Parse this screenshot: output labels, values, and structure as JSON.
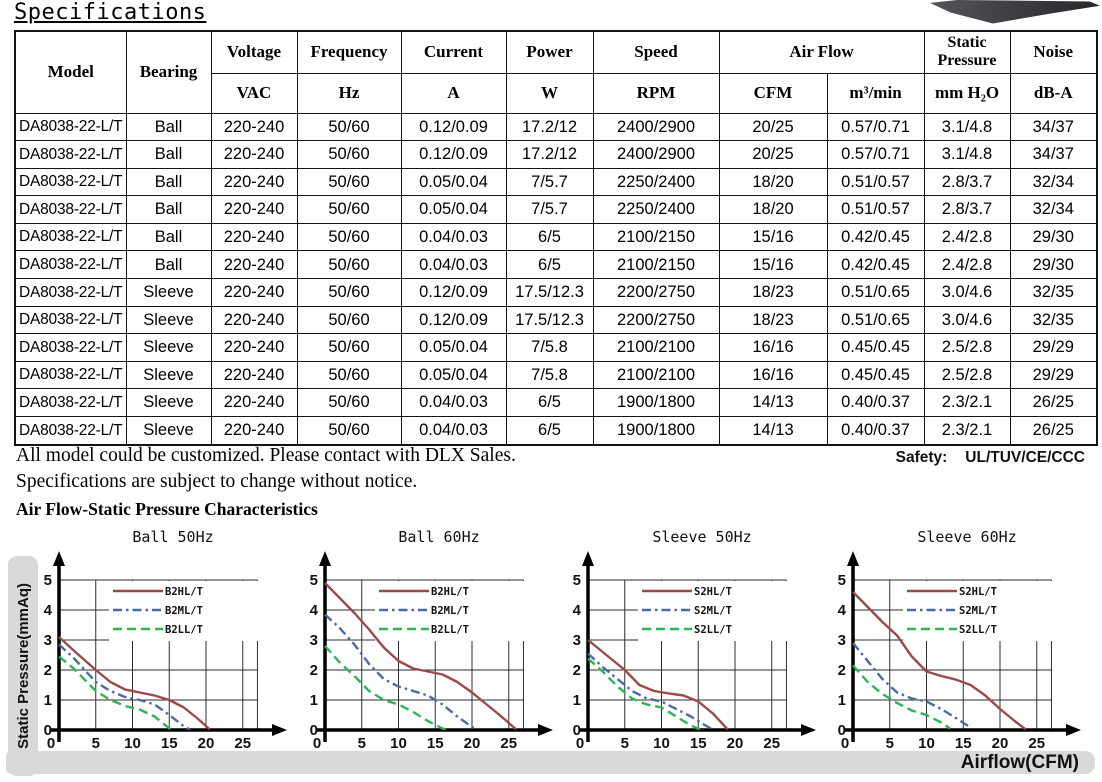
{
  "page": {
    "title": "Specifications"
  },
  "notes": [
    "All model could be customized. Please contact with DLX Sales.",
    "Specifications are subject to change without notice."
  ],
  "safety": {
    "label": "Safety:",
    "value": "UL/TUV/CE/CCC"
  },
  "charts_section": {
    "title": "Air Flow-Static Pressure Characteristics",
    "y_axis_label": "Static Pressure(mmAq)",
    "x_axis_label": "Airflow(CFM)"
  },
  "table": {
    "col_keys": [
      "model",
      "bearing",
      "voltage",
      "frequency",
      "current",
      "power",
      "speed",
      "cfm",
      "m3min",
      "mmh2o",
      "noise"
    ],
    "headers": {
      "model": "Model",
      "bearing": "Bearing",
      "voltage": "Voltage",
      "frequency": "Frequency",
      "current": "Current",
      "power": "Power",
      "speed": "Speed",
      "airflow": "Air Flow",
      "static_pressure": "Static Pressure",
      "noise": "Noise",
      "units": {
        "voltage": "VAC",
        "frequency": "Hz",
        "current": "A",
        "power": "W",
        "speed": "RPM",
        "airflow_cfm": "CFM",
        "airflow_m3": "m³/min",
        "static_pressure": "mm H₂O",
        "noise": "dB-A"
      }
    },
    "rows": [
      [
        "DA8038-22-L/T",
        "Ball",
        "220-240",
        "50/60",
        "0.12/0.09",
        "17.2/12",
        "2400/2900",
        "20/25",
        "0.57/0.71",
        "3.1/4.8",
        "34/37"
      ],
      [
        "DA8038-22-L/T",
        "Ball",
        "220-240",
        "50/60",
        "0.12/0.09",
        "17.2/12",
        "2400/2900",
        "20/25",
        "0.57/0.71",
        "3.1/4.8",
        "34/37"
      ],
      [
        "DA8038-22-L/T",
        "Ball",
        "220-240",
        "50/60",
        "0.05/0.04",
        "7/5.7",
        "2250/2400",
        "18/20",
        "0.51/0.57",
        "2.8/3.7",
        "32/34"
      ],
      [
        "DA8038-22-L/T",
        "Ball",
        "220-240",
        "50/60",
        "0.05/0.04",
        "7/5.7",
        "2250/2400",
        "18/20",
        "0.51/0.57",
        "2.8/3.7",
        "32/34"
      ],
      [
        "DA8038-22-L/T",
        "Ball",
        "220-240",
        "50/60",
        "0.04/0.03",
        "6/5",
        "2100/2150",
        "15/16",
        "0.42/0.45",
        "2.4/2.8",
        "29/30"
      ],
      [
        "DA8038-22-L/T",
        "Ball",
        "220-240",
        "50/60",
        "0.04/0.03",
        "6/5",
        "2100/2150",
        "15/16",
        "0.42/0.45",
        "2.4/2.8",
        "29/30"
      ],
      [
        "DA8038-22-L/T",
        "Sleeve",
        "220-240",
        "50/60",
        "0.12/0.09",
        "17.5/12.3",
        "2200/2750",
        "18/23",
        "0.51/0.65",
        "3.0/4.6",
        "32/35"
      ],
      [
        "DA8038-22-L/T",
        "Sleeve",
        "220-240",
        "50/60",
        "0.12/0.09",
        "17.5/12.3",
        "2200/2750",
        "18/23",
        "0.51/0.65",
        "3.0/4.6",
        "32/35"
      ],
      [
        "DA8038-22-L/T",
        "Sleeve",
        "220-240",
        "50/60",
        "0.05/0.04",
        "7/5.8",
        "2100/2100",
        "16/16",
        "0.45/0.45",
        "2.5/2.8",
        "29/29"
      ],
      [
        "DA8038-22-L/T",
        "Sleeve",
        "220-240",
        "50/60",
        "0.05/0.04",
        "7/5.8",
        "2100/2100",
        "16/16",
        "0.45/0.45",
        "2.5/2.8",
        "29/29"
      ],
      [
        "DA8038-22-L/T",
        "Sleeve",
        "220-240",
        "50/60",
        "0.04/0.03",
        "6/5",
        "1900/1800",
        "14/13",
        "0.40/0.37",
        "2.3/2.1",
        "26/25"
      ],
      [
        "DA8038-22-L/T",
        "Sleeve",
        "220-240",
        "50/60",
        "0.04/0.03",
        "6/5",
        "1900/1800",
        "14/13",
        "0.40/0.37",
        "2.3/2.1",
        "26/25"
      ]
    ]
  },
  "chart_data": [
    {
      "type": "line",
      "title": "Ball 50Hz",
      "xticks": [
        0,
        5,
        10,
        15,
        20,
        25
      ],
      "yticks": [
        0,
        1,
        2,
        3,
        4,
        5
      ],
      "xlim": [
        0,
        27
      ],
      "ylim": [
        0,
        5
      ],
      "grid": true,
      "legend_position": "top-right",
      "series": [
        {
          "name": "B2HL/T",
          "color": "#9c4a49",
          "dash": "solid",
          "points": [
            [
              0,
              3.1
            ],
            [
              2,
              2.65
            ],
            [
              5,
              2.0
            ],
            [
              7,
              1.6
            ],
            [
              9,
              1.35
            ],
            [
              11,
              1.25
            ],
            [
              13,
              1.15
            ],
            [
              15,
              1.0
            ],
            [
              17,
              0.75
            ],
            [
              19,
              0.35
            ],
            [
              20.5,
              0.02
            ]
          ]
        },
        {
          "name": "B2ML/T",
          "color": "#4a6ba5",
          "dash": "dashdot",
          "points": [
            [
              0,
              2.85
            ],
            [
              2,
              2.4
            ],
            [
              5,
              1.6
            ],
            [
              7,
              1.3
            ],
            [
              9,
              1.1
            ],
            [
              11,
              1.0
            ],
            [
              13,
              0.85
            ],
            [
              15,
              0.5
            ],
            [
              17,
              0.12
            ],
            [
              17.8,
              0.02
            ]
          ]
        },
        {
          "name": "B2LL/T",
          "color": "#2db457",
          "dash": "dashed",
          "points": [
            [
              0,
              2.45
            ],
            [
              2,
              2.05
            ],
            [
              5,
              1.3
            ],
            [
              7,
              1.0
            ],
            [
              9,
              0.8
            ],
            [
              11,
              0.68
            ],
            [
              13,
              0.45
            ],
            [
              14.5,
              0.15
            ],
            [
              15.2,
              0.02
            ]
          ]
        }
      ]
    },
    {
      "type": "line",
      "title": "Ball 60Hz",
      "xticks": [
        0,
        5,
        10,
        15,
        20,
        25
      ],
      "yticks": [
        0,
        1,
        2,
        3,
        4,
        5
      ],
      "xlim": [
        0,
        27
      ],
      "ylim": [
        0,
        5
      ],
      "grid": true,
      "legend_position": "top-right",
      "series": [
        {
          "name": "B2HL/T",
          "color": "#9c4a49",
          "dash": "solid",
          "points": [
            [
              0,
              4.9
            ],
            [
              2,
              4.4
            ],
            [
              4,
              3.9
            ],
            [
              6,
              3.35
            ],
            [
              8,
              2.75
            ],
            [
              10,
              2.3
            ],
            [
              12,
              2.05
            ],
            [
              14,
              1.95
            ],
            [
              16,
              1.85
            ],
            [
              18,
              1.6
            ],
            [
              20,
              1.25
            ],
            [
              22,
              0.85
            ],
            [
              24,
              0.45
            ],
            [
              26,
              0.02
            ]
          ]
        },
        {
          "name": "B2ML/T",
          "color": "#4a6ba5",
          "dash": "dashdot",
          "points": [
            [
              0,
              3.85
            ],
            [
              2,
              3.4
            ],
            [
              4,
              2.85
            ],
            [
              6,
              2.2
            ],
            [
              8,
              1.7
            ],
            [
              10,
              1.45
            ],
            [
              12,
              1.3
            ],
            [
              14,
              1.15
            ],
            [
              16,
              0.85
            ],
            [
              18,
              0.45
            ],
            [
              20,
              0.1
            ],
            [
              20.6,
              0.02
            ]
          ]
        },
        {
          "name": "B2LL/T",
          "color": "#2db457",
          "dash": "dashed",
          "points": [
            [
              0,
              2.8
            ],
            [
              2,
              2.25
            ],
            [
              4,
              1.8
            ],
            [
              6,
              1.3
            ],
            [
              8,
              1.0
            ],
            [
              10,
              0.85
            ],
            [
              12,
              0.6
            ],
            [
              14,
              0.3
            ],
            [
              16,
              0.05
            ],
            [
              16.6,
              0.02
            ]
          ]
        }
      ]
    },
    {
      "type": "line",
      "title": "Sleeve 50Hz",
      "xticks": [
        0,
        5,
        10,
        15,
        20,
        25
      ],
      "yticks": [
        0,
        1,
        2,
        3,
        4,
        5
      ],
      "xlim": [
        0,
        27
      ],
      "ylim": [
        0,
        5
      ],
      "grid": true,
      "legend_position": "top-right",
      "series": [
        {
          "name": "S2HL/T",
          "color": "#9c4a49",
          "dash": "solid",
          "points": [
            [
              0,
              3.0
            ],
            [
              2,
              2.6
            ],
            [
              5,
              2.0
            ],
            [
              7,
              1.5
            ],
            [
              9,
              1.3
            ],
            [
              11,
              1.22
            ],
            [
              13,
              1.15
            ],
            [
              15,
              0.95
            ],
            [
              17,
              0.55
            ],
            [
              19,
              0.02
            ]
          ]
        },
        {
          "name": "S2ML/T",
          "color": "#4a6ba5",
          "dash": "dashdot",
          "points": [
            [
              0,
              2.55
            ],
            [
              2,
              2.1
            ],
            [
              4,
              1.7
            ],
            [
              6,
              1.3
            ],
            [
              8,
              1.05
            ],
            [
              10,
              0.95
            ],
            [
              12,
              0.7
            ],
            [
              14,
              0.45
            ],
            [
              16,
              0.15
            ],
            [
              17,
              0.02
            ]
          ]
        },
        {
          "name": "S2LL/T",
          "color": "#2db457",
          "dash": "dashed",
          "points": [
            [
              0,
              2.38
            ],
            [
              2,
              1.95
            ],
            [
              4,
              1.45
            ],
            [
              6,
              1.05
            ],
            [
              8,
              0.85
            ],
            [
              10,
              0.75
            ],
            [
              12,
              0.45
            ],
            [
              14,
              0.15
            ],
            [
              15.2,
              0.02
            ]
          ]
        }
      ]
    },
    {
      "type": "line",
      "title": "Sleeve 60Hz",
      "xticks": [
        0,
        5,
        10,
        15,
        20,
        25
      ],
      "yticks": [
        0,
        1,
        2,
        3,
        4,
        5
      ],
      "xlim": [
        0,
        27
      ],
      "ylim": [
        0,
        5
      ],
      "grid": true,
      "legend_position": "top-right",
      "series": [
        {
          "name": "S2HL/T",
          "color": "#9c4a49",
          "dash": "solid",
          "points": [
            [
              0,
              4.6
            ],
            [
              2,
              4.1
            ],
            [
              4,
              3.6
            ],
            [
              6,
              3.15
            ],
            [
              8,
              2.45
            ],
            [
              10,
              1.95
            ],
            [
              12,
              1.8
            ],
            [
              14,
              1.68
            ],
            [
              16,
              1.5
            ],
            [
              18,
              1.15
            ],
            [
              20,
              0.7
            ],
            [
              22,
              0.3
            ],
            [
              23.5,
              0.02
            ]
          ]
        },
        {
          "name": "S2ML/T",
          "color": "#4a6ba5",
          "dash": "dashdot",
          "points": [
            [
              0,
              2.9
            ],
            [
              2,
              2.3
            ],
            [
              4,
              1.7
            ],
            [
              6,
              1.25
            ],
            [
              8,
              1.05
            ],
            [
              10,
              0.95
            ],
            [
              12,
              0.7
            ],
            [
              14,
              0.4
            ],
            [
              16,
              0.08
            ]
          ]
        },
        {
          "name": "S2LL/T",
          "color": "#2db457",
          "dash": "dashed",
          "points": [
            [
              0,
              2.15
            ],
            [
              2,
              1.6
            ],
            [
              4,
              1.2
            ],
            [
              6,
              0.9
            ],
            [
              8,
              0.65
            ],
            [
              10,
              0.5
            ],
            [
              12,
              0.25
            ],
            [
              13.2,
              0.05
            ]
          ]
        }
      ]
    }
  ],
  "colors": {
    "series_high": "#9c4a49",
    "series_mid": "#4a6ba5",
    "series_low": "#2db457",
    "strip_background": "#d9d9d9",
    "border": "#141414"
  }
}
